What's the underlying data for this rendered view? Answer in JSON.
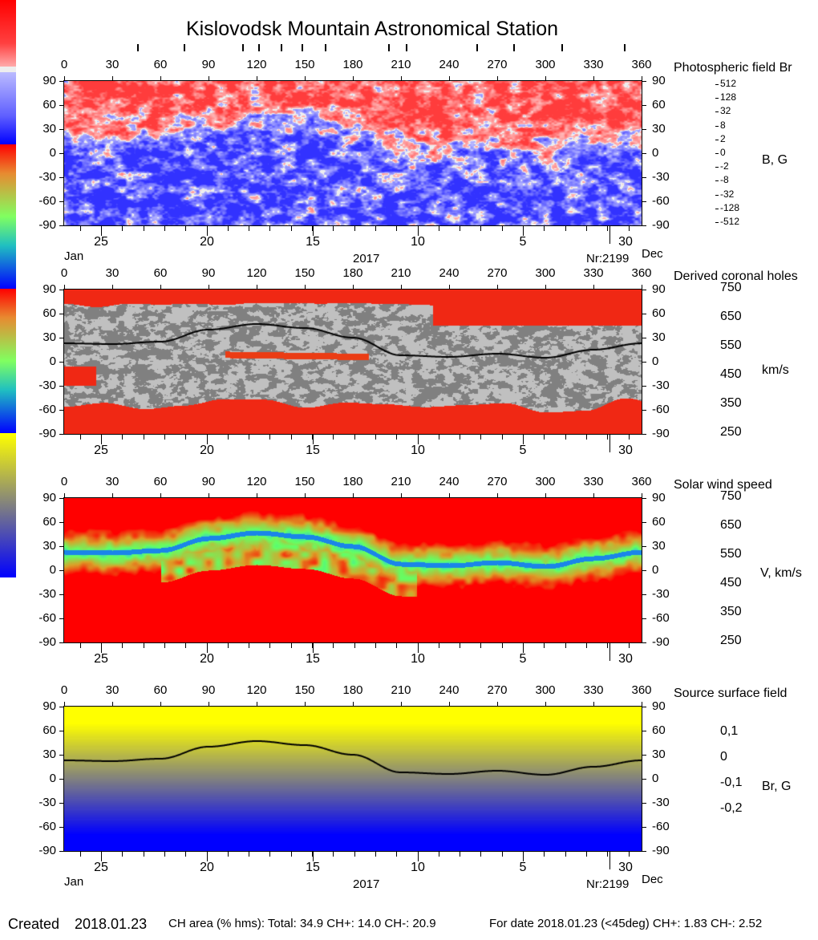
{
  "title": "Kislovodsk Mountain Astronomical Station",
  "footer": {
    "created_label": "Created",
    "created_date": "2018.01.23",
    "ch_area": "CH area (% hms): Total: 34.9 CH+: 14.0   CH-: 20.9",
    "for_date": "For date 2018.01.23 (<45deg) CH+: 1.83    CH-: 2.52"
  },
  "chart_data": [
    {
      "type": "heatmap",
      "title": "Photospheric field Br",
      "colorbar_label": "B, G",
      "colorbar_ticks": [
        "512",
        "128",
        "32",
        "8",
        "2",
        "0",
        "-2",
        "-8",
        "-32",
        "-128",
        "-512"
      ],
      "colors": {
        "positive": "#ff0000",
        "negative": "#0000ff",
        "zero": "#eeeeee"
      },
      "x_top_ticks": [
        "0",
        "30",
        "60",
        "90",
        "120",
        "150",
        "180",
        "210",
        "240",
        "270",
        "300",
        "330",
        "360"
      ],
      "xlim": [
        0,
        360
      ],
      "ylim": [
        -90,
        90
      ],
      "y_ticks": [
        "90",
        "60",
        "30",
        "0",
        "-30",
        "-60",
        "-90"
      ],
      "x_bottom_ticks": [
        "25",
        "20",
        "15",
        "10",
        "5",
        "30"
      ],
      "month_left": "Jan",
      "month_right": "Dec",
      "year": "2017",
      "rotation": "Nr:2199"
    },
    {
      "type": "heatmap",
      "title": "Derived coronal holes",
      "colorbar_label": "km/s",
      "colorbar_ticks": [
        "750",
        "650",
        "550",
        "450",
        "350",
        "250"
      ],
      "x_top_ticks": [
        "0",
        "30",
        "60",
        "90",
        "120",
        "150",
        "180",
        "210",
        "240",
        "270",
        "300",
        "330",
        "360"
      ],
      "y_ticks": [
        "90",
        "60",
        "30",
        "0",
        "-30",
        "-60",
        "-90"
      ],
      "x_bottom_ticks": [
        "25",
        "20",
        "15",
        "10",
        "5",
        "30"
      ]
    },
    {
      "type": "heatmap",
      "title": "Solar wind speed",
      "colorbar_label": "V, km/s",
      "colorbar_ticks": [
        "750",
        "650",
        "550",
        "450",
        "350",
        "250"
      ],
      "x_top_ticks": [
        "0",
        "30",
        "60",
        "90",
        "120",
        "150",
        "180",
        "210",
        "240",
        "270",
        "300",
        "330",
        "360"
      ],
      "y_ticks": [
        "90",
        "60",
        "30",
        "0",
        "-30",
        "-60",
        "-90"
      ],
      "x_bottom_ticks": [
        "25",
        "20",
        "15",
        "10",
        "5",
        "30"
      ]
    },
    {
      "type": "heatmap",
      "title": "Source surface field",
      "colorbar_label": "Br, G",
      "colorbar_ticks": [
        "0,1",
        "0",
        "-0,1",
        "-0,2"
      ],
      "colors": {
        "positive": "#ffff00",
        "zero": "#808080",
        "negative": "#0000ff"
      },
      "x_top_ticks": [
        "0",
        "30",
        "60",
        "90",
        "120",
        "150",
        "180",
        "210",
        "240",
        "270",
        "300",
        "330",
        "360"
      ],
      "y_ticks": [
        "90",
        "60",
        "30",
        "0",
        "-30",
        "-60",
        "-90"
      ],
      "x_bottom_ticks": [
        "25",
        "20",
        "15",
        "10",
        "5",
        "30"
      ],
      "month_left": "Jan",
      "month_right": "Dec",
      "year": "2017",
      "rotation": "Nr:2199",
      "neutral_line": {
        "lon": [
          0,
          30,
          60,
          90,
          120,
          150,
          180,
          210,
          240,
          270,
          300,
          330,
          360
        ],
        "lat": [
          23,
          22,
          25,
          40,
          47,
          42,
          30,
          8,
          6,
          10,
          5,
          15,
          23
        ]
      }
    }
  ]
}
